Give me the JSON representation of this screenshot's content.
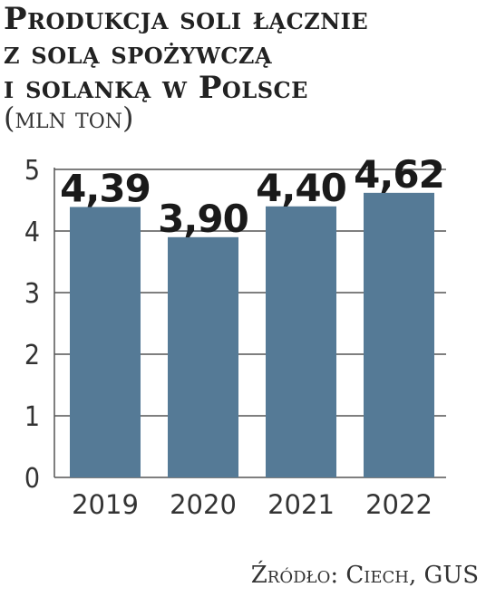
{
  "chart_data": {
    "type": "bar",
    "title": [
      "Produkcja soli łącznie",
      "z solą spożywczą",
      "i solanką w Polsce"
    ],
    "subtitle": "(mln ton)",
    "categories": [
      "2019",
      "2020",
      "2021",
      "2022"
    ],
    "values": [
      4.39,
      3.9,
      4.4,
      4.62
    ],
    "value_labels": [
      "4,39",
      "3,90",
      "4,40",
      "4,62"
    ],
    "y_ticks": [
      "0",
      "1",
      "2",
      "3",
      "4",
      "5"
    ],
    "ylim": [
      0,
      5
    ],
    "grid": true,
    "bar_color": "#557a96",
    "grid_color": "#555555",
    "source": "Źródło: Ciech, GUS"
  }
}
